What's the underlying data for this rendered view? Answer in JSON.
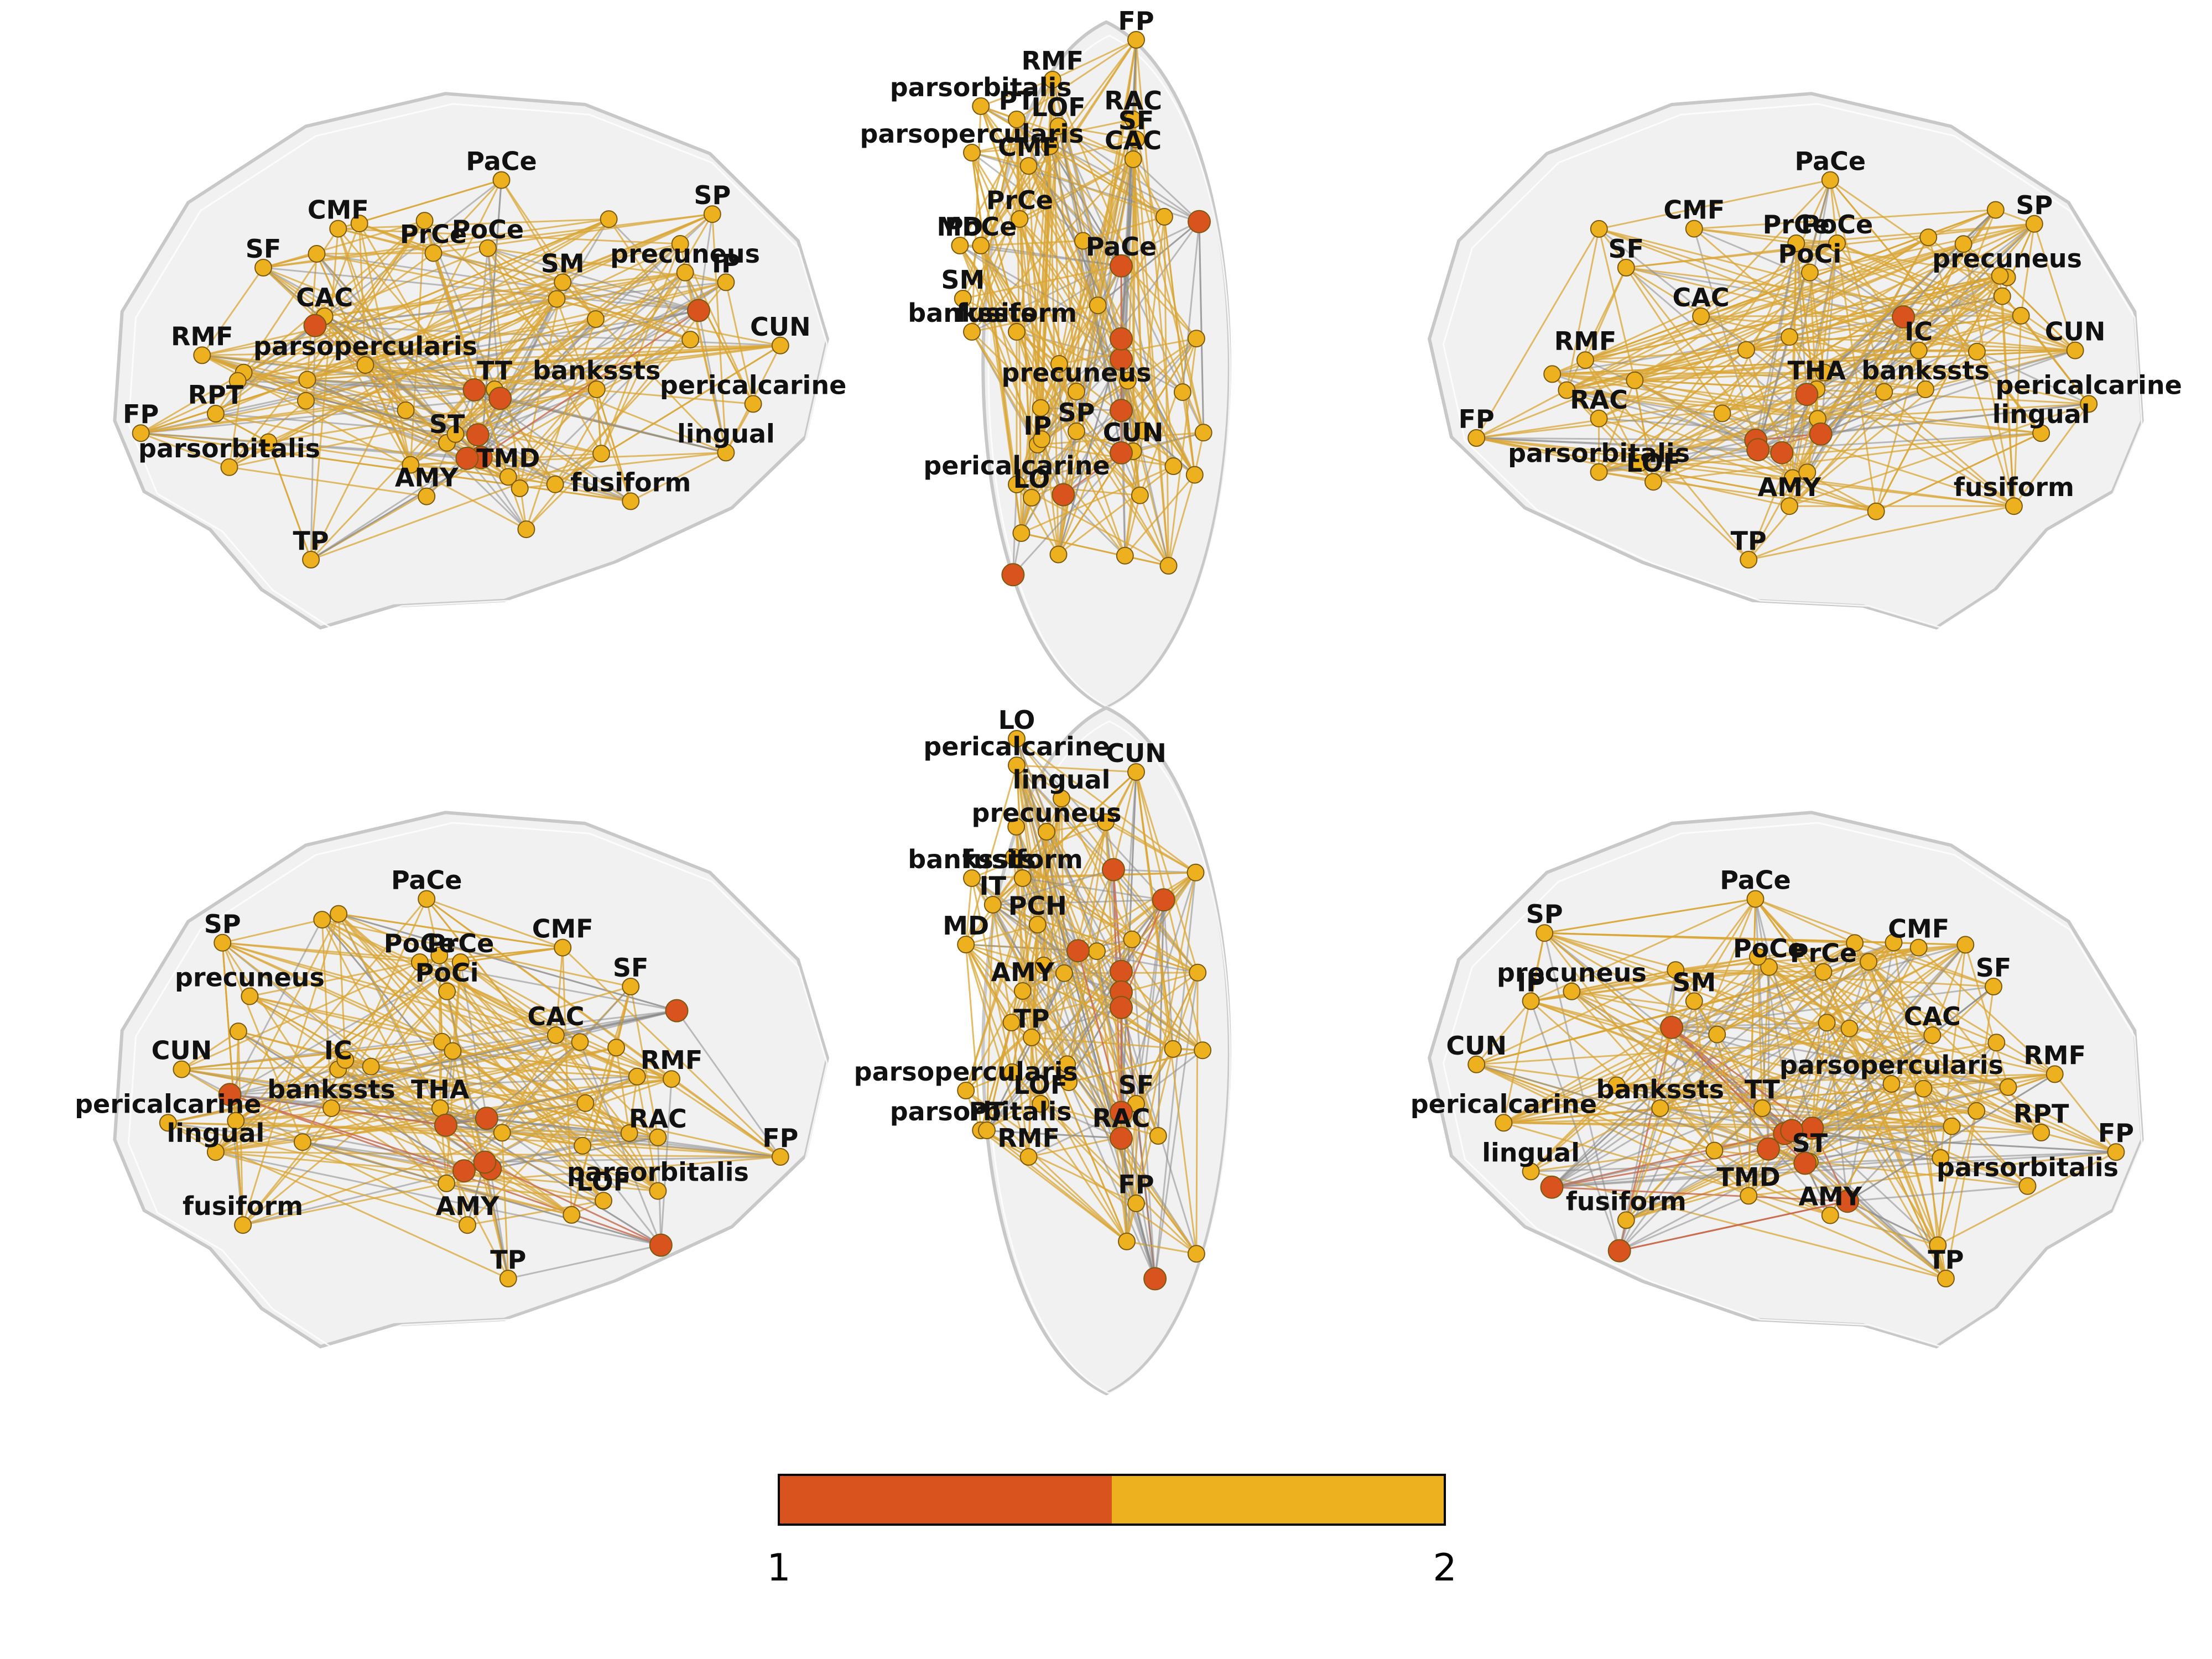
{
  "colors": {
    "node_module_1": "#D9531E",
    "node_module_2": "#EDB120",
    "edge_within_2": "#D9A635",
    "edge_within_1": "#C8684A",
    "edge_between": "#8A8A8A",
    "brain_fill": "#E6E6E6",
    "brain_stroke": "#C8C8C8"
  },
  "colorbar": {
    "tick_min": "1",
    "tick_max": "2",
    "segments": [
      {
        "module": 1,
        "color": "#D9531E"
      },
      {
        "module": 2,
        "color": "#EDB120"
      }
    ]
  },
  "views": [
    {
      "name": "sagittal-left-lateral",
      "labels": [
        "PaCe",
        "SP",
        "CMF",
        "PrCe",
        "PoCe",
        "SF",
        "precuneus",
        "SM",
        "IP",
        "CAC",
        "CUN",
        "RMF",
        "parsopercularis",
        "TT",
        "bankssts",
        "pericalcarine",
        "RPT",
        "FP",
        "lingual",
        "ST",
        "parsorbitalis",
        "TMD",
        "fusiform",
        "AMY",
        "TP"
      ]
    },
    {
      "name": "axial-top",
      "labels": [
        "FP",
        "RMF",
        "parsorbitalis",
        "PT",
        "LOF",
        "RAC",
        "SF",
        "parsopercularis",
        "CAC",
        "CMF",
        "PrCe",
        "MD",
        "PoCe",
        "PaCe",
        "SM",
        "bankssts",
        "fusiform",
        "precuneus",
        "SP",
        "IP",
        "CUN",
        "pericalcarine",
        "LO"
      ]
    },
    {
      "name": "sagittal-right-medial",
      "labels": [
        "PaCe",
        "SP",
        "PoCe",
        "PrCe",
        "CMF",
        "SF",
        "precuneus",
        "PoCi",
        "CAC",
        "CUN",
        "IC",
        "RMF",
        "bankssts",
        "THA",
        "pericalcarine",
        "lingual",
        "RAC",
        "FP",
        "parsorbitalis",
        "LOF",
        "fusiform",
        "AMY",
        "TP"
      ]
    },
    {
      "name": "sagittal-left-medial",
      "labels": [
        "PaCe",
        "SP",
        "PoCe",
        "PrCe",
        "CMF",
        "SF",
        "precuneus",
        "PoCi",
        "CAC",
        "CUN",
        "IC",
        "RMF",
        "bankssts",
        "THA",
        "pericalcarine",
        "lingual",
        "RAC",
        "FP",
        "parsorbitalis",
        "LOF",
        "fusiform",
        "AMY",
        "TP"
      ]
    },
    {
      "name": "axial-bottom",
      "labels": [
        "LO",
        "pericalcarine",
        "CUN",
        "lingual",
        "precuneus",
        "bankssts",
        "fusiform",
        "IT",
        "PCH",
        "MD",
        "AMY",
        "TP",
        "parsopercularis",
        "LOF",
        "SF",
        "parsorbitalis",
        "PT",
        "RAC",
        "RMF",
        "FP"
      ]
    },
    {
      "name": "sagittal-right-lateral",
      "labels": [
        "PaCe",
        "SP",
        "CMF",
        "PrCe",
        "PoCe",
        "SF",
        "precuneus",
        "SM",
        "IP",
        "CAC",
        "CUN",
        "RMF",
        "parsopercularis",
        "TT",
        "bankssts",
        "pericalcarine",
        "RPT",
        "FP",
        "lingual",
        "ST",
        "parsorbitalis",
        "TMD",
        "fusiform",
        "AMY",
        "TP"
      ]
    }
  ]
}
